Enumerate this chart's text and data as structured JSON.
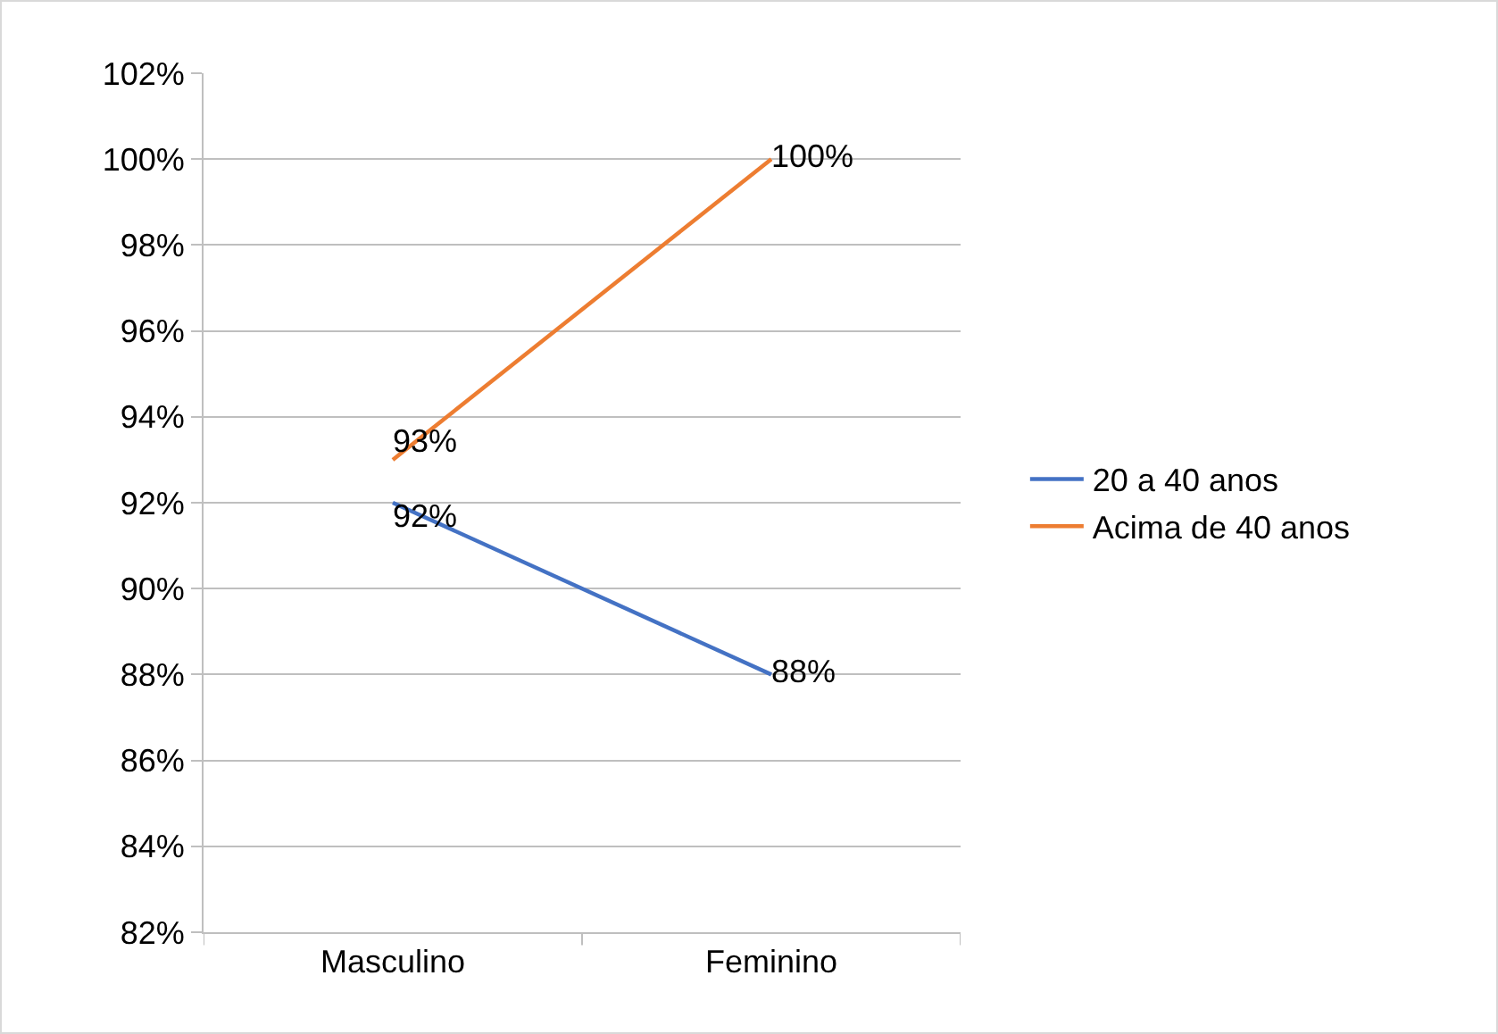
{
  "chart_data": {
    "type": "line",
    "categories": [
      "Masculino",
      "Feminino"
    ],
    "series": [
      {
        "name": "20 a 40 anos",
        "color": "#4472c4",
        "values": [
          92,
          88
        ],
        "value_labels": [
          "92%",
          "88%"
        ]
      },
      {
        "name": "Acima de 40 anos",
        "color": "#ed7d31",
        "values": [
          93,
          100
        ],
        "value_labels": [
          "93%",
          "100%"
        ]
      }
    ],
    "ylim": [
      82,
      102
    ],
    "yticks": [
      {
        "value": 82,
        "label": "82%"
      },
      {
        "value": 84,
        "label": "84%"
      },
      {
        "value": 86,
        "label": "86%"
      },
      {
        "value": 88,
        "label": "88%"
      },
      {
        "value": 90,
        "label": "90%"
      },
      {
        "value": 92,
        "label": "92%"
      },
      {
        "value": 94,
        "label": "94%"
      },
      {
        "value": 96,
        "label": "96%"
      },
      {
        "value": 98,
        "label": "98%"
      },
      {
        "value": 100,
        "label": "100%"
      },
      {
        "value": 102,
        "label": "102%"
      }
    ],
    "grid": "y",
    "legend": "right",
    "marker": "none",
    "line_style": "solid"
  }
}
